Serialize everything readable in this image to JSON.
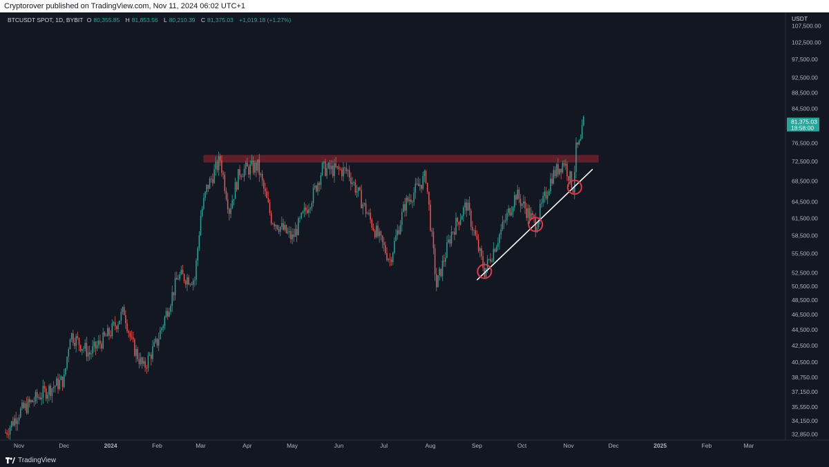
{
  "header": {
    "publish_text": "Cryptorover published on TradingView.com, Nov 11, 2024 06:02 UTC+1"
  },
  "legend": {
    "symbol": "BTCUSDT SPOT, 1D, BYBIT",
    "open_label": "O",
    "open": "80,355.85",
    "high_label": "H",
    "high": "81,853.56",
    "low_label": "L",
    "low": "80,210.39",
    "close_label": "C",
    "close": "81,375.03",
    "change": "+1,019.18 (+1.27%)"
  },
  "price_axis": {
    "currency": "USDT",
    "ticks": [
      "107,500.00",
      "102,500.00",
      "97,500.00",
      "92,500.00",
      "88,500.00",
      "84,500.00",
      "76,500.00",
      "72,500.00",
      "68,500.00",
      "64,500.00",
      "61,500.00",
      "58,500.00",
      "55,500.00",
      "52,500.00",
      "50,500.00",
      "48,500.00",
      "46,500.00",
      "44,500.00",
      "42,500.00",
      "40,500.00",
      "38,750.00",
      "37,150.00",
      "35,550.00",
      "34,150.00",
      "32,850.00"
    ],
    "last_price": "81,375.03",
    "countdown": "18:58:00"
  },
  "time_axis": {
    "ticks": [
      "Nov",
      "Dec",
      "2024",
      "Feb",
      "Mar",
      "Apr",
      "May",
      "Jun",
      "Jul",
      "Aug",
      "Sep",
      "Oct",
      "Nov",
      "Dec",
      "2025",
      "Feb",
      "Mar"
    ]
  },
  "footer": {
    "brand": "TradingView",
    "logo_icon": "tradingview-logo-icon"
  },
  "colors": {
    "background": "#131722",
    "up": "#26a69a",
    "down": "#ef5350",
    "resistance_zone": "#7a2430",
    "trendline": "#ffffff",
    "circle": "#e53945"
  },
  "chart_data": {
    "type": "candlestick",
    "title": "BTCUSDT SPOT, 1D, BYBIT",
    "scale": "log",
    "ylim": [
      32300,
      110000
    ],
    "x_range": [
      "2023-10-23",
      "2025-03-25"
    ],
    "resistance_zone": [
      72300,
      73900
    ],
    "trendline": {
      "from": [
        "2024-09-01",
        51400
      ],
      "to": [
        "2024-11-17",
        70900
      ]
    },
    "highlighted_lows": [
      {
        "date": "2024-09-06",
        "price": 52700
      },
      {
        "date": "2024-10-10",
        "price": 60400
      },
      {
        "date": "2024-11-05",
        "price": 67300
      }
    ],
    "series": [
      {
        "name": "BTCUSDT",
        "values": [
          [
            "2023-10-23",
            33000
          ],
          [
            "2023-11-01",
            35000
          ],
          [
            "2023-11-15",
            36800
          ],
          [
            "2023-12-01",
            38500
          ],
          [
            "2023-12-05",
            44000
          ],
          [
            "2023-12-18",
            41500
          ],
          [
            "2024-01-01",
            44200
          ],
          [
            "2024-01-10",
            47000
          ],
          [
            "2024-01-15",
            42800
          ],
          [
            "2024-01-23",
            39800
          ],
          [
            "2024-02-01",
            43000
          ],
          [
            "2024-02-15",
            52000
          ],
          [
            "2024-02-26",
            51500
          ],
          [
            "2024-03-01",
            62000
          ],
          [
            "2024-03-05",
            67000
          ],
          [
            "2024-03-14",
            73000
          ],
          [
            "2024-03-20",
            63000
          ],
          [
            "2024-03-27",
            70500
          ],
          [
            "2024-04-08",
            71500
          ],
          [
            "2024-04-17",
            61500
          ],
          [
            "2024-05-01",
            58000
          ],
          [
            "2024-05-15",
            66000
          ],
          [
            "2024-05-21",
            71000
          ],
          [
            "2024-06-07",
            70500
          ],
          [
            "2024-06-24",
            60000
          ],
          [
            "2024-07-05",
            54500
          ],
          [
            "2024-07-15",
            64000
          ],
          [
            "2024-07-29",
            69500
          ],
          [
            "2024-08-05",
            50500
          ],
          [
            "2024-08-15",
            59000
          ],
          [
            "2024-08-25",
            64000
          ],
          [
            "2024-09-06",
            52700
          ],
          [
            "2024-09-27",
            66000
          ],
          [
            "2024-10-10",
            60400
          ],
          [
            "2024-10-21",
            69500
          ],
          [
            "2024-10-29",
            72500
          ],
          [
            "2024-11-04",
            67300
          ],
          [
            "2024-11-06",
            75000
          ],
          [
            "2024-11-09",
            76500
          ],
          [
            "2024-11-11",
            81375
          ]
        ]
      }
    ]
  }
}
